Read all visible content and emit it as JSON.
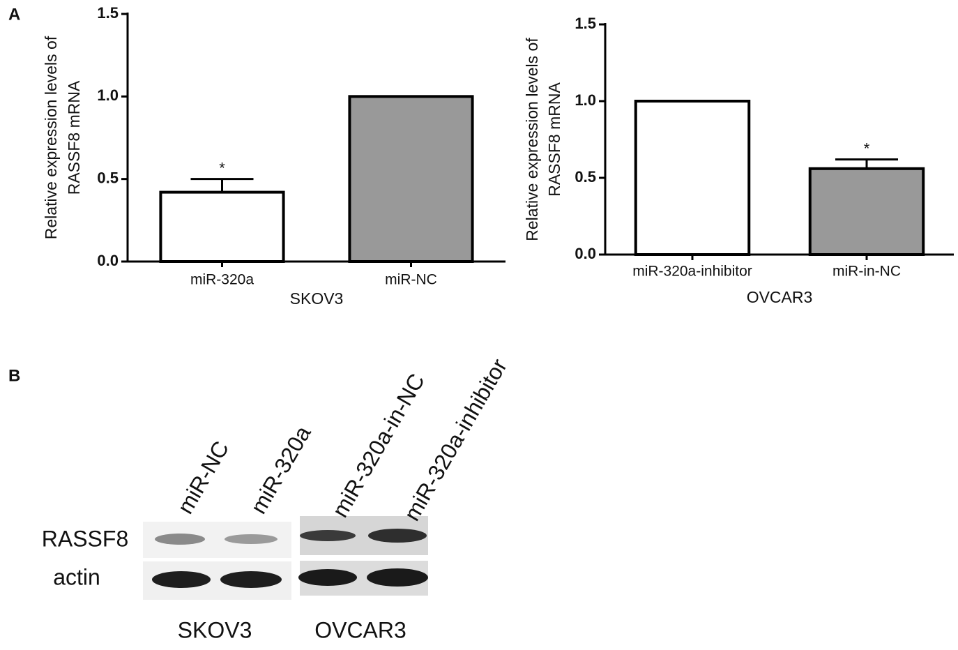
{
  "panel_labels": [
    "A",
    "B"
  ],
  "chart_data": [
    {
      "type": "bar",
      "ylabel": [
        "Relative expression levels of",
        "RASSF8 mRNA"
      ],
      "xlabel": "SKOV3",
      "categories": [
        "miR-320a",
        "miR-NC"
      ],
      "values": [
        0.42,
        1.0
      ],
      "errors": [
        0.08,
        null
      ],
      "star_labels": [
        "*",
        null
      ],
      "colors": [
        "#ffffff",
        "#999999"
      ],
      "ylim": [
        0,
        1.5
      ],
      "yticks": [
        {
          "value": 0,
          "label": "0.0"
        },
        0.5,
        {
          "value": 1,
          "label": "1.0"
        },
        1.5
      ]
    },
    {
      "type": "bar",
      "ylabel": [
        "Relative expression levels of",
        "RASSF8 mRNA"
      ],
      "xlabel": "OVCAR3",
      "categories": [
        "miR-320a-inhibitor",
        "miR-in-NC"
      ],
      "values": [
        1.0,
        0.56
      ],
      "errors": [
        null,
        0.06
      ],
      "star_labels": [
        null,
        "*"
      ],
      "colors": [
        "#ffffff",
        "#999999"
      ],
      "ylim": [
        0,
        1.5
      ],
      "yticks": [
        {
          "value": 0,
          "label": "0.0"
        },
        0.5,
        {
          "value": 1,
          "label": "1.0"
        },
        1.5
      ]
    }
  ],
  "blot": {
    "lanes": [
      "miR-NC",
      "miR-320a",
      "miR-320a-in-NC",
      "miR-320a-inhibitor"
    ],
    "rows": [
      "RASSF8",
      "actin"
    ],
    "groups": [
      "SKOV3",
      "OVCAR3"
    ]
  }
}
